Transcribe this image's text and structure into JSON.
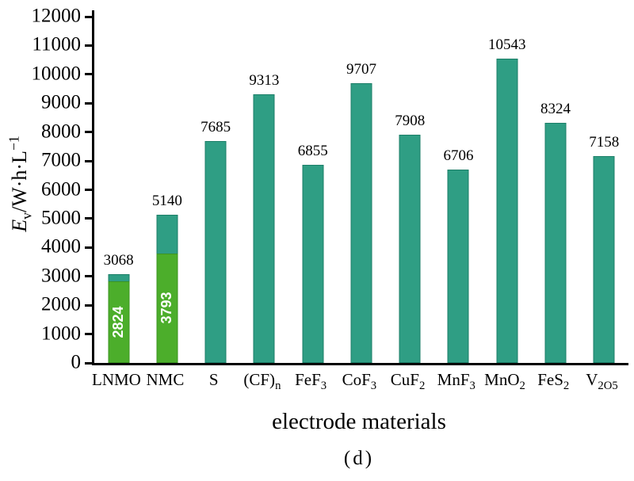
{
  "figure": {
    "caption": "(d)",
    "xlabel": "electrode materials",
    "ylabel": {
      "symbol": "E",
      "subscript": "v",
      "unit": "/W·h·L",
      "exponent": "−1"
    }
  },
  "chart_data": {
    "type": "bar",
    "title": "",
    "xlabel": "electrode materials",
    "ylabel": "E_v/W·h·L^−1",
    "caption": "(d)",
    "ylim": [
      0,
      12000
    ],
    "ytick_step": 1000,
    "grid": false,
    "legend": null,
    "categories": [
      "LNMO",
      "NMC",
      "S",
      "(CF)_n",
      "FeF_3",
      "CoF_3",
      "CuF_2",
      "MnF_3",
      "MnO_2",
      "FeS_2",
      "V_2O_5"
    ],
    "series": [
      {
        "name": "total-volumetric-energy-density",
        "values": [
          3068,
          5140,
          7685,
          9313,
          6855,
          9707,
          7908,
          6706,
          10543,
          8324,
          7158
        ]
      },
      {
        "name": "inner-highlight",
        "values": [
          2824,
          3793,
          null,
          null,
          null,
          null,
          null,
          null,
          null,
          null,
          null
        ]
      }
    ],
    "colors": {
      "bar": "#2f9e84",
      "bar_border": "#1d7f68",
      "inner_bar": "#4cae2b",
      "inner_bar_border": "#3c9421",
      "inner_label_color": "#ffffff",
      "axis": "#000000"
    }
  }
}
